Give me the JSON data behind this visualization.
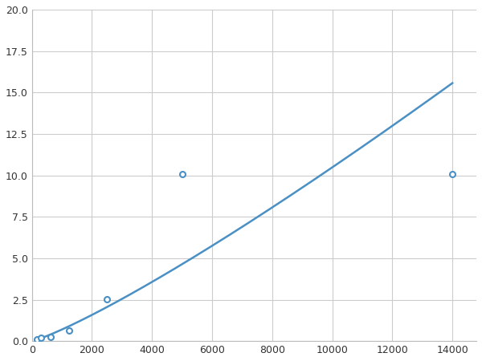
{
  "x": [
    156,
    312,
    625,
    1250,
    2500,
    5000,
    14000
  ],
  "y": [
    0.1,
    0.18,
    0.25,
    0.65,
    2.55,
    10.1,
    10.1
  ],
  "x_data": [
    156,
    312,
    625,
    1250,
    2500,
    5000,
    14000
  ],
  "y_data": [
    0.1,
    0.18,
    0.25,
    0.65,
    2.55,
    10.1,
    10.1
  ],
  "line_color": "#4a90c4",
  "marker_color": "#4a90c4",
  "marker_size": 5,
  "xlim": [
    0,
    14800
  ],
  "ylim": [
    0,
    20
  ],
  "xticks": [
    0,
    2000,
    4000,
    6000,
    8000,
    10000,
    12000,
    14000
  ],
  "yticks": [
    0.0,
    2.5,
    5.0,
    7.5,
    10.0,
    12.5,
    15.0,
    17.5,
    20.0
  ],
  "grid_color": "#cccccc",
  "background_color": "#ffffff",
  "line_width": 1.8
}
